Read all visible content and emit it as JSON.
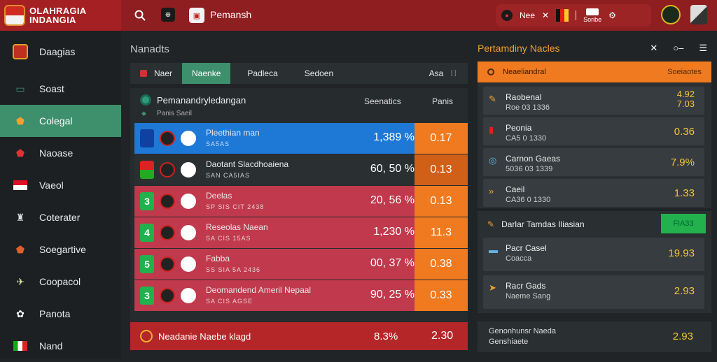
{
  "brand": {
    "line1": "OLAHRAGIA",
    "line2": "INDANGIA"
  },
  "topbar": {
    "title": "Pemansh",
    "pill_left": "Nee",
    "pill_score_label": "Soribe"
  },
  "sidebar": {
    "items": [
      {
        "label": "Daagias",
        "icon": "shield-icon"
      },
      {
        "label": "Soast",
        "icon": "desktop-icon"
      },
      {
        "label": "Colegal",
        "icon": "crest-icon"
      },
      {
        "label": "Naoase",
        "icon": "flag-icon"
      },
      {
        "label": "Vaeol",
        "icon": "flag-icon"
      },
      {
        "label": "Coterater",
        "icon": "trophy-icon"
      },
      {
        "label": "Soegartive",
        "icon": "crest-icon"
      },
      {
        "label": "Coopacol",
        "icon": "plane-icon"
      },
      {
        "label": "Panota",
        "icon": "medal-icon"
      },
      {
        "label": "Nand",
        "icon": "badge-icon"
      }
    ]
  },
  "main": {
    "heading": "Nanadts",
    "tabs": [
      "Naer",
      "Naenke",
      "Padleca",
      "Sedoen"
    ],
    "tab_right": "Asa",
    "table": {
      "title": "Pemanandryledangan",
      "subtitle": "Panis Saeil",
      "col1": "Seenatics",
      "col2": "Panis",
      "rows": [
        {
          "rank": "",
          "name": "Pleethian man",
          "sub": "SA5AS",
          "pct": "1,389 %",
          "odd": "0.17",
          "color": "#1e78d6",
          "oddcolor": "#f07a20"
        },
        {
          "rank": "",
          "name": "Daotant Slacdhoaiena",
          "sub": "SAN CA5IAS",
          "pct": "60, 50 %",
          "odd": "0.13",
          "color": "#2a3032",
          "oddcolor": "#d06018"
        },
        {
          "rank": "3",
          "name": "Deelas",
          "sub": "SP SIS CIT 2438",
          "pct": "20, 56 %",
          "odd": "0.13",
          "color": "#c0394c",
          "oddcolor": "#f07a20"
        },
        {
          "rank": "4",
          "name": "Reseolas Naean",
          "sub": "SA CIS 15AS",
          "pct": "1,230 %",
          "odd": "11.3",
          "color": "#c0394c",
          "oddcolor": "#f07a20"
        },
        {
          "rank": "5",
          "name": "Fabba",
          "sub": "SS SIA 5A 2436",
          "pct": "00, 37 %",
          "odd": "0.38",
          "color": "#c0394c",
          "oddcolor": "#f07a20"
        },
        {
          "rank": "3",
          "name": "Deomandend Ameril Nepaal",
          "sub": "SA CIS AGSE",
          "pct": "90, 25 %",
          "odd": "0.33",
          "color": "#c0394c",
          "oddcolor": "#f07a20"
        }
      ]
    },
    "bottom": {
      "label": "Neadanie Naebe klagd",
      "val1": "8.3%",
      "val2": "2.30"
    }
  },
  "right": {
    "title": "Pertamdiny Nacles",
    "head_label": "Neaeliandral",
    "head_right": "Soeiaotes",
    "rows": [
      {
        "t1": "Raobenal",
        "t2": "Roe 03 1336",
        "v": "4.92",
        "v2": "7.03"
      },
      {
        "t1": "Peonia",
        "t2": "CA5 0 1330",
        "v": "0.36"
      },
      {
        "t1": "Carnon Gaeas",
        "t2": "5036 03 1339",
        "v": "7.9%"
      },
      {
        "t1": "Caeil",
        "t2": "CA36 0 1330",
        "v": "1.33"
      }
    ],
    "panel2_head": "Darlar Tamdas Iliasian",
    "panel2_button": "FIA33",
    "panel2_rows": [
      {
        "t1": "Pacr Casel",
        "t2": "Coacca",
        "v": "19.93"
      },
      {
        "t1": "Racr Gads",
        "t2": "Naeme Sang",
        "v": "2.93"
      }
    ],
    "panel3": {
      "t1": "Genonhunsr Naeda",
      "t2": "Genshiaete",
      "v": "2.93"
    }
  }
}
